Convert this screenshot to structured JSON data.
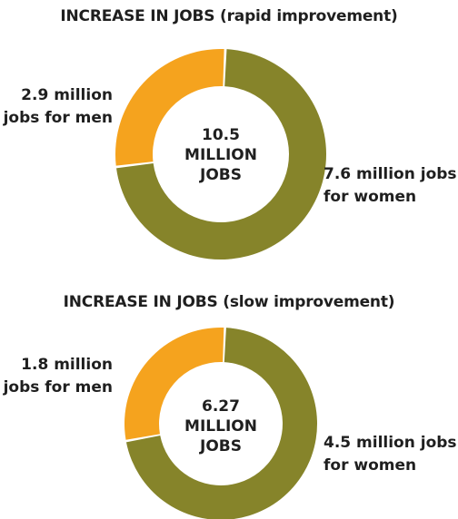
{
  "colors": {
    "men": "#F5A31E",
    "women": "#86842A"
  },
  "chart_data": [
    {
      "type": "pie",
      "title": "INCREASE IN JOBS (rapid improvement)",
      "center_label": [
        "10.5",
        "MILLION",
        "JOBS"
      ],
      "categories": [
        "men",
        "women"
      ],
      "values": [
        2.9,
        7.6
      ],
      "labels": {
        "men": [
          "2.9 million",
          "jobs for men"
        ],
        "women": [
          "7.6 million jobs",
          "for women"
        ]
      }
    },
    {
      "type": "pie",
      "title": "INCREASE IN JOBS (slow improvement)",
      "center_label": [
        "6.27",
        "MILLION",
        "JOBS"
      ],
      "categories": [
        "men",
        "women"
      ],
      "values": [
        1.8,
        4.5
      ],
      "labels": {
        "men": [
          "1.8 million",
          "jobs for men"
        ],
        "women": [
          "4.5 million jobs",
          "for women"
        ]
      }
    }
  ]
}
